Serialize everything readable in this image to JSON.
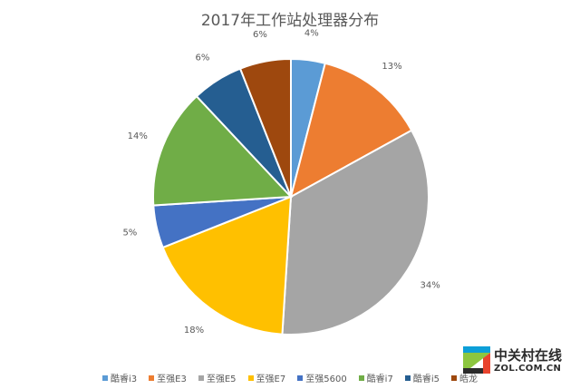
{
  "chart_data": {
    "type": "pie",
    "title": "2017年工作站处理器分布",
    "categories": [
      "酷睿i3",
      "至强E3",
      "至强E5",
      "至强E7",
      "至强5600",
      "酷睿i7",
      "酷睿i5",
      "皓龙"
    ],
    "values": [
      4,
      13,
      34,
      18,
      5,
      14,
      6,
      6
    ],
    "value_labels": [
      "4%",
      "13%",
      "34%",
      "18%",
      "5%",
      "14%",
      "6%",
      "6%"
    ],
    "colors": [
      "#5b9bd5",
      "#ed7d31",
      "#a5a5a5",
      "#ffc000",
      "#4472c4",
      "#70ad47",
      "#255e91",
      "#9e480e"
    ],
    "legend_position": "bottom"
  },
  "watermark": {
    "brand": "中关村在线",
    "url": "ZOL.COM.CN",
    "accent_colors": [
      "#0d9fd8",
      "#8cc63f",
      "#e8442e",
      "#2b2b2b"
    ]
  }
}
